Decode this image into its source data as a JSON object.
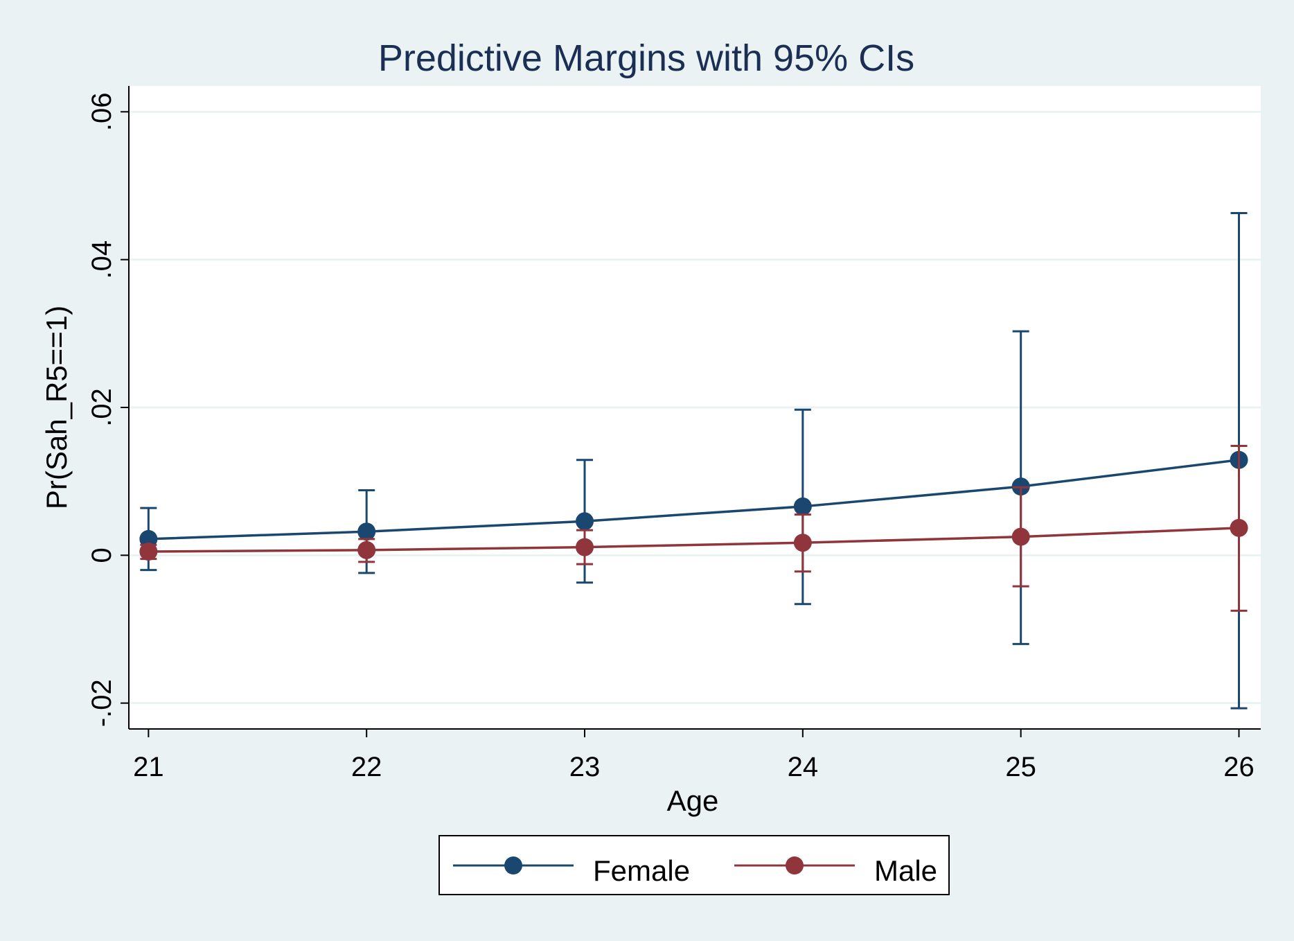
{
  "chart_data": {
    "type": "line",
    "title": "Predictive Margins with 95% CIs",
    "xlabel": "Age",
    "ylabel": "Pr(Sah_R5==1)",
    "x": [
      21,
      22,
      23,
      24,
      25,
      26
    ],
    "x_tick_labels": [
      "21",
      "22",
      "23",
      "24",
      "25",
      "26"
    ],
    "y_ticks": [
      -0.02,
      0,
      0.02,
      0.04,
      0.06
    ],
    "y_tick_labels": [
      "-.02",
      "0",
      ".02",
      ".04",
      ".06"
    ],
    "ylim": [
      -0.0235,
      0.0635
    ],
    "xlim": [
      20.91,
      26.1
    ],
    "grid": true,
    "legend_position": "bottom",
    "series": [
      {
        "name": "Female",
        "color": "#1a476f",
        "marker": "circle",
        "values": [
          0.0022,
          0.0032,
          0.0046,
          0.0066,
          0.0093,
          0.0129
        ],
        "ci_lower": [
          -0.002,
          -0.0024,
          -0.0037,
          -0.0066,
          -0.012,
          -0.0207
        ],
        "ci_upper": [
          0.0064,
          0.0088,
          0.0129,
          0.0197,
          0.0303,
          0.0463
        ]
      },
      {
        "name": "Male",
        "color": "#90353b",
        "marker": "circle",
        "values": [
          0.0005,
          0.0007,
          0.0011,
          0.0017,
          0.0025,
          0.0037
        ],
        "ci_lower": [
          -0.0005,
          -0.0009,
          -0.0012,
          -0.0022,
          -0.0042,
          -0.0075
        ],
        "ci_upper": [
          0.0014,
          0.0022,
          0.0034,
          0.0055,
          0.0092,
          0.0148
        ]
      }
    ]
  }
}
